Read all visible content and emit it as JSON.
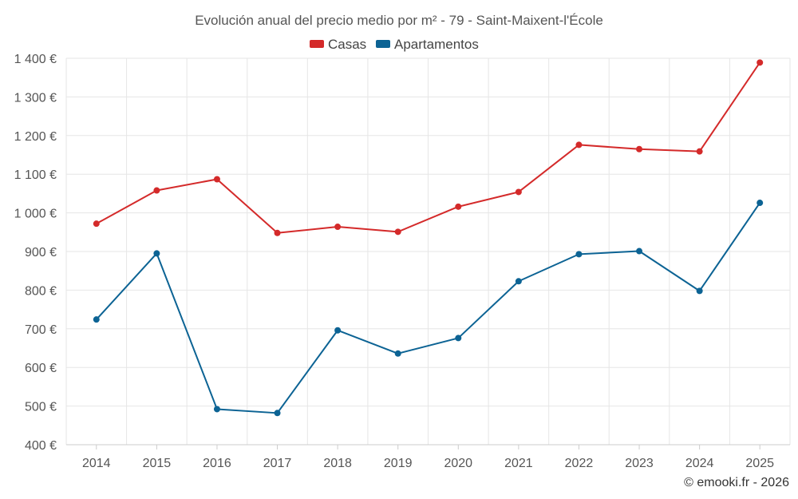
{
  "chart_data": {
    "type": "line",
    "title": "Evolución anual del precio medio por m² - 79 - Saint-Maixent-l'École",
    "categories": [
      "2014",
      "2015",
      "2016",
      "2017",
      "2018",
      "2019",
      "2020",
      "2021",
      "2022",
      "2023",
      "2024",
      "2025"
    ],
    "series": [
      {
        "name": "Casas",
        "color": "#d42a2a",
        "values": [
          972,
          1058,
          1087,
          948,
          964,
          951,
          1016,
          1054,
          1176,
          1165,
          1159,
          1389
        ]
      },
      {
        "name": "Apartamentos",
        "color": "#0c6394",
        "values": [
          724,
          895,
          492,
          482,
          696,
          636,
          676,
          823,
          893,
          901,
          798,
          1026
        ]
      }
    ],
    "ylim": [
      400,
      1400
    ],
    "yticks": [
      {
        "value": 400,
        "label": "400 €"
      },
      {
        "value": 500,
        "label": "500 €"
      },
      {
        "value": 600,
        "label": "600 €"
      },
      {
        "value": 700,
        "label": "700 €"
      },
      {
        "value": 800,
        "label": "800 €"
      },
      {
        "value": 900,
        "label": "900 €"
      },
      {
        "value": 1000,
        "label": "1 000 €"
      },
      {
        "value": 1100,
        "label": "1 100 €"
      },
      {
        "value": 1200,
        "label": "1 200 €"
      },
      {
        "value": 1300,
        "label": "1 300 €"
      },
      {
        "value": 1400,
        "label": "1 400 €"
      }
    ],
    "legend_position": "top",
    "grid": true,
    "credit": "© emooki.fr - 2026"
  }
}
